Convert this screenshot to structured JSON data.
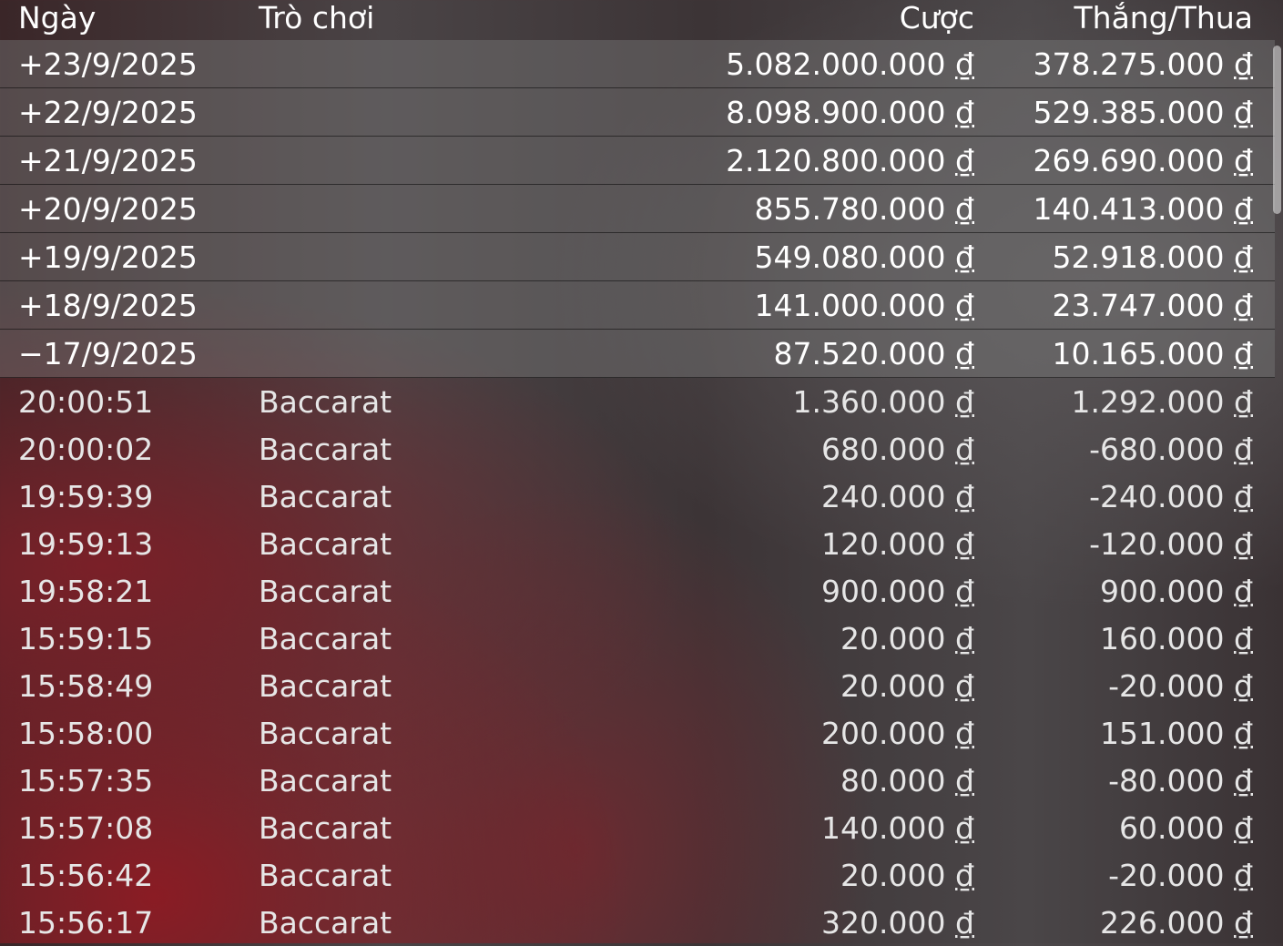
{
  "header": {
    "date": "Ngày",
    "game": "Trò chơi",
    "bet": "Cược",
    "winloss": "Thắng/Thua"
  },
  "currency": "₫",
  "days": [
    {
      "date": "+23/9/2025",
      "bet": "5.082.000.000",
      "winloss": "378.275.000"
    },
    {
      "date": "+22/9/2025",
      "bet": "8.098.900.000",
      "winloss": "529.385.000"
    },
    {
      "date": "+21/9/2025",
      "bet": "2.120.800.000",
      "winloss": "269.690.000"
    },
    {
      "date": "+20/9/2025",
      "bet": "855.780.000",
      "winloss": "140.413.000"
    },
    {
      "date": "+19/9/2025",
      "bet": "549.080.000",
      "winloss": "52.918.000"
    },
    {
      "date": "+18/9/2025",
      "bet": "141.000.000",
      "winloss": "23.747.000"
    },
    {
      "date": "−17/9/2025",
      "bet": "87.520.000",
      "winloss": "10.165.000"
    }
  ],
  "details": [
    {
      "time": "20:00:51",
      "game": "Baccarat",
      "bet": "1.360.000",
      "winloss": "1.292.000"
    },
    {
      "time": "20:00:02",
      "game": "Baccarat",
      "bet": "680.000",
      "winloss": "-680.000"
    },
    {
      "time": "19:59:39",
      "game": "Baccarat",
      "bet": "240.000",
      "winloss": "-240.000"
    },
    {
      "time": "19:59:13",
      "game": "Baccarat",
      "bet": "120.000",
      "winloss": "-120.000"
    },
    {
      "time": "19:58:21",
      "game": "Baccarat",
      "bet": "900.000",
      "winloss": "900.000"
    },
    {
      "time": "15:59:15",
      "game": "Baccarat",
      "bet": "20.000",
      "winloss": "160.000"
    },
    {
      "time": "15:58:49",
      "game": "Baccarat",
      "bet": "20.000",
      "winloss": "-20.000"
    },
    {
      "time": "15:58:00",
      "game": "Baccarat",
      "bet": "200.000",
      "winloss": "151.000"
    },
    {
      "time": "15:57:35",
      "game": "Baccarat",
      "bet": "80.000",
      "winloss": "-80.000"
    },
    {
      "time": "15:57:08",
      "game": "Baccarat",
      "bet": "140.000",
      "winloss": "60.000"
    },
    {
      "time": "15:56:42",
      "game": "Baccarat",
      "bet": "20.000",
      "winloss": "-20.000"
    },
    {
      "time": "15:56:17",
      "game": "Baccarat",
      "bet": "320.000",
      "winloss": "226.000"
    }
  ]
}
